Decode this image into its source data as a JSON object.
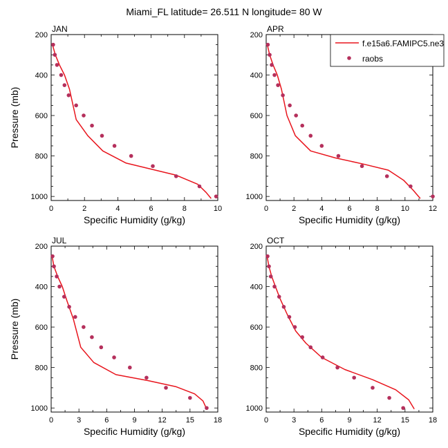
{
  "figure": {
    "title": "Miami_FL  latitude= 26.511 N longitude= 80 W"
  },
  "legend": {
    "model_label": "f.e15a6.FAMIPC5.ne3",
    "obs_label": "raobs",
    "placement": "top-right of APR panel"
  },
  "colors": {
    "model_line": "#e8141c",
    "obs_marker": "#b5305c",
    "axes": "#000000"
  },
  "chart_data": [
    {
      "type": "line",
      "panel_label": "JAN",
      "xlabel": "Specific Humidity (g/kg)",
      "ylabel": "Pressure (mb)",
      "xlim": [
        0,
        10
      ],
      "ylim": [
        200,
        1020
      ],
      "y_inverted": true,
      "xticks": [
        0,
        2,
        4,
        6,
        8,
        10
      ],
      "yticks": [
        200,
        400,
        600,
        800,
        1000
      ],
      "series": [
        {
          "kind": "line",
          "x": [
            0.08,
            0.25,
            0.5,
            0.8,
            1.1,
            1.5,
            2.2,
            3.1,
            4.5,
            6.0,
            7.5,
            8.8,
            9.3,
            9.6
          ],
          "y": [
            250,
            300,
            350,
            400,
            470,
            620,
            700,
            775,
            835,
            865,
            895,
            940,
            980,
            1010
          ]
        },
        {
          "kind": "scatter",
          "x": [
            0.12,
            0.22,
            0.35,
            0.6,
            0.8,
            1.05,
            1.5,
            1.95,
            2.45,
            3.05,
            3.8,
            4.8,
            6.1,
            7.5,
            8.9,
            9.9
          ],
          "y": [
            250,
            300,
            350,
            400,
            450,
            500,
            550,
            600,
            650,
            700,
            750,
            800,
            850,
            900,
            950,
            1000
          ]
        }
      ]
    },
    {
      "type": "line",
      "panel_label": "APR",
      "xlabel": "Specific Humidity (g/kg)",
      "ylabel": "",
      "xlim": [
        0,
        12
      ],
      "ylim": [
        200,
        1020
      ],
      "y_inverted": true,
      "xticks": [
        0,
        2,
        4,
        6,
        8,
        10,
        12
      ],
      "yticks": [
        200,
        400,
        600,
        800,
        1000
      ],
      "series": [
        {
          "kind": "line",
          "x": [
            0.08,
            0.25,
            0.5,
            0.8,
            1.1,
            1.5,
            2.1,
            3.2,
            5.0,
            7.0,
            8.8,
            9.9,
            10.6,
            11.1
          ],
          "y": [
            250,
            300,
            350,
            400,
            470,
            600,
            700,
            775,
            810,
            840,
            870,
            920,
            970,
            1010
          ]
        },
        {
          "kind": "scatter",
          "x": [
            0.12,
            0.25,
            0.4,
            0.6,
            0.85,
            1.2,
            1.7,
            2.15,
            2.6,
            3.2,
            4.0,
            5.2,
            6.9,
            8.7,
            10.4,
            12.0
          ],
          "y": [
            250,
            300,
            350,
            400,
            450,
            500,
            550,
            600,
            650,
            700,
            750,
            800,
            850,
            900,
            950,
            1000
          ]
        }
      ]
    },
    {
      "type": "line",
      "panel_label": "JUL",
      "xlabel": "Specific Humidity (g/kg)",
      "ylabel": "Pressure (mb)",
      "xlim": [
        0,
        18
      ],
      "ylim": [
        200,
        1020
      ],
      "y_inverted": true,
      "xticks": [
        0,
        3,
        6,
        9,
        12,
        15,
        18
      ],
      "yticks": [
        200,
        400,
        600,
        800,
        1000
      ],
      "series": [
        {
          "kind": "line",
          "x": [
            0.1,
            0.3,
            0.7,
            1.2,
            1.7,
            2.4,
            3.2,
            4.6,
            7.0,
            10.5,
            13.5,
            15.5,
            16.4,
            16.8
          ],
          "y": [
            250,
            300,
            350,
            400,
            470,
            560,
            700,
            775,
            835,
            865,
            895,
            930,
            965,
            1005
          ]
        },
        {
          "kind": "scatter",
          "x": [
            0.15,
            0.3,
            0.6,
            0.9,
            1.4,
            1.95,
            2.6,
            3.5,
            4.4,
            5.4,
            6.8,
            8.5,
            10.3,
            12.4,
            15.0,
            16.8
          ],
          "y": [
            250,
            300,
            350,
            400,
            450,
            500,
            550,
            600,
            650,
            700,
            750,
            800,
            850,
            900,
            950,
            1000
          ]
        }
      ]
    },
    {
      "type": "line",
      "panel_label": "OCT",
      "xlabel": "Specific Humidity (g/kg)",
      "ylabel": "",
      "xlim": [
        0,
        18
      ],
      "ylim": [
        200,
        1020
      ],
      "y_inverted": true,
      "xticks": [
        0,
        3,
        6,
        9,
        12,
        15,
        18
      ],
      "yticks": [
        200,
        400,
        600,
        800,
        1000
      ],
      "series": [
        {
          "kind": "line",
          "x": [
            0.1,
            0.3,
            0.6,
            1.0,
            1.5,
            2.3,
            3.2,
            4.3,
            6.0,
            8.5,
            11.5,
            14.0,
            15.4,
            16.0
          ],
          "y": [
            250,
            300,
            350,
            400,
            460,
            540,
            620,
            680,
            750,
            810,
            860,
            910,
            960,
            1005
          ]
        },
        {
          "kind": "scatter",
          "x": [
            0.15,
            0.3,
            0.5,
            0.9,
            1.4,
            1.9,
            2.5,
            3.1,
            3.9,
            4.8,
            6.1,
            7.7,
            9.5,
            11.5,
            13.3,
            14.8
          ],
          "y": [
            250,
            300,
            350,
            400,
            450,
            500,
            550,
            600,
            650,
            700,
            750,
            800,
            850,
            900,
            950,
            1000
          ]
        }
      ]
    }
  ]
}
